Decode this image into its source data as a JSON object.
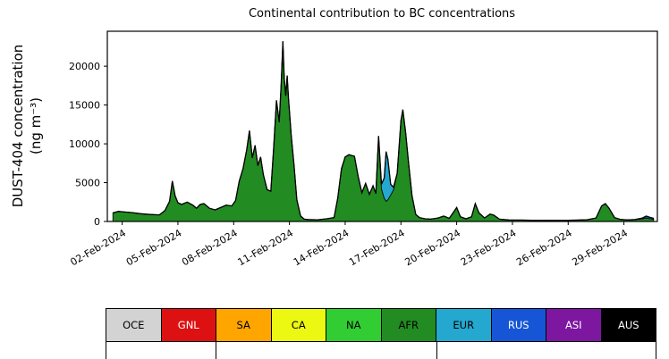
{
  "chart_data": {
    "type": "area",
    "title": "Continental contribution to BC concentrations",
    "ylabel_line1": "DUST-404 concentration",
    "ylabel_line2": "(ng m⁻³)",
    "xlim": [
      0.2,
      29.8
    ],
    "ylim": [
      0,
      24500
    ],
    "grid": false,
    "y_ticks": [
      0,
      5000,
      10000,
      15000,
      20000
    ],
    "x_ticks": [
      {
        "day": 1,
        "label": "02-Feb-2024"
      },
      {
        "day": 4,
        "label": "05-Feb-2024"
      },
      {
        "day": 7,
        "label": "08-Feb-2024"
      },
      {
        "day": 10,
        "label": "11-Feb-2024"
      },
      {
        "day": 13,
        "label": "14-Feb-2024"
      },
      {
        "day": 16,
        "label": "17-Feb-2024"
      },
      {
        "day": 19,
        "label": "20-Feb-2024"
      },
      {
        "day": 22,
        "label": "23-Feb-2024"
      },
      {
        "day": 25,
        "label": "26-Feb-2024"
      },
      {
        "day": 28,
        "label": "29-Feb-2024"
      }
    ],
    "x": [
      0.5,
      0.8,
      1.0,
      1.5,
      2.0,
      2.5,
      3.0,
      3.3,
      3.55,
      3.7,
      3.85,
      4.0,
      4.2,
      4.5,
      4.8,
      5.0,
      5.2,
      5.4,
      5.7,
      6.0,
      6.3,
      6.6,
      6.9,
      7.1,
      7.3,
      7.5,
      7.7,
      7.85,
      8.0,
      8.15,
      8.3,
      8.45,
      8.6,
      8.8,
      9.0,
      9.15,
      9.3,
      9.45,
      9.55,
      9.65,
      9.72,
      9.8,
      9.88,
      9.95,
      10.1,
      10.25,
      10.4,
      10.6,
      10.8,
      11.0,
      11.5,
      12.0,
      12.4,
      12.6,
      12.8,
      13.0,
      13.2,
      13.5,
      13.7,
      13.9,
      14.1,
      14.3,
      14.5,
      14.65,
      14.8,
      14.95,
      15.1,
      15.2,
      15.3,
      15.45,
      15.6,
      15.8,
      16.0,
      16.1,
      16.25,
      16.4,
      16.6,
      16.8,
      17.0,
      17.3,
      17.6,
      18.0,
      18.3,
      18.6,
      19.0,
      19.2,
      19.5,
      19.8,
      20.0,
      20.2,
      20.5,
      20.8,
      21.0,
      21.3,
      21.8,
      22.5,
      23.0,
      24.0,
      25.0,
      26.0,
      26.5,
      26.8,
      27.0,
      27.2,
      27.5,
      27.8,
      28.2,
      28.6,
      29.0,
      29.2,
      29.4,
      29.6
    ],
    "series": [
      {
        "name": "AFR",
        "color": "#228B22",
        "values": [
          1100,
          1300,
          1250,
          1150,
          1000,
          900,
          850,
          1400,
          2600,
          5200,
          3300,
          2400,
          2200,
          2500,
          2100,
          1700,
          2200,
          2300,
          1700,
          1500,
          1800,
          2100,
          2000,
          2700,
          5200,
          6800,
          9200,
          11700,
          8200,
          9800,
          7200,
          8300,
          6000,
          4100,
          3900,
          9500,
          15600,
          12800,
          17500,
          23200,
          18500,
          16200,
          18800,
          15800,
          11000,
          7200,
          2800,
          700,
          300,
          250,
          220,
          350,
          500,
          3000,
          6800,
          8300,
          8600,
          8400,
          5800,
          3700,
          4900,
          3500,
          4600,
          3600,
          11000,
          4200,
          3000,
          2600,
          2800,
          3400,
          4100,
          6200,
          13000,
          14400,
          11500,
          7800,
          3300,
          900,
          500,
          350,
          300,
          450,
          700,
          400,
          1800,
          600,
          350,
          600,
          2300,
          1100,
          450,
          950,
          800,
          300,
          200,
          180,
          150,
          140,
          150,
          220,
          450,
          2000,
          2300,
          1700,
          500,
          280,
          200,
          250,
          350,
          450,
          350,
          300
        ]
      },
      {
        "name": "EUR",
        "color": "#25a8cf",
        "values": [
          0,
          0,
          0,
          0,
          0,
          0,
          0,
          0,
          0,
          0,
          0,
          0,
          0,
          0,
          0,
          0,
          0,
          0,
          0,
          0,
          0,
          0,
          0,
          0,
          0,
          0,
          0,
          0,
          0,
          0,
          0,
          0,
          0,
          0,
          0,
          0,
          0,
          0,
          0,
          0,
          0,
          0,
          0,
          0,
          0,
          0,
          0,
          0,
          0,
          0,
          0,
          0,
          0,
          0,
          0,
          0,
          0,
          0,
          0,
          0,
          0,
          0,
          0,
          0,
          0,
          600,
          2600,
          6400,
          5200,
          1400,
          300,
          0,
          0,
          0,
          0,
          0,
          0,
          0,
          0,
          0,
          0,
          0,
          0,
          0,
          0,
          0,
          0,
          0,
          0,
          0,
          0,
          0,
          0,
          0,
          0,
          0,
          0,
          0,
          0,
          0,
          0,
          0,
          0,
          0,
          0,
          0,
          0,
          0,
          0,
          0,
          0,
          0
        ]
      },
      {
        "name": "RUS",
        "color": "#1656d6",
        "values": [
          0,
          0,
          0,
          0,
          0,
          0,
          0,
          0,
          0,
          0,
          0,
          0,
          0,
          0,
          0,
          0,
          0,
          0,
          0,
          0,
          0,
          0,
          0,
          0,
          0,
          0,
          0,
          0,
          0,
          0,
          0,
          0,
          0,
          0,
          0,
          0,
          0,
          0,
          0,
          0,
          0,
          0,
          0,
          0,
          0,
          0,
          0,
          0,
          0,
          0,
          0,
          0,
          0,
          0,
          0,
          0,
          0,
          0,
          0,
          0,
          0,
          0,
          0,
          0,
          0,
          0,
          0,
          0,
          0,
          0,
          0,
          0,
          0,
          0,
          0,
          0,
          0,
          0,
          0,
          0,
          0,
          0,
          0,
          0,
          0,
          0,
          0,
          0,
          0,
          0,
          0,
          0,
          0,
          0,
          0,
          0,
          0,
          0,
          0,
          0,
          0,
          0,
          0,
          0,
          0,
          0,
          0,
          0,
          100,
          250,
          180,
          100
        ]
      }
    ],
    "outline_color": "#000000"
  },
  "legend": {
    "items": [
      {
        "label": "OCE",
        "color": "#d3d3d3",
        "text": "#000000"
      },
      {
        "label": "GNL",
        "color": "#dd1111",
        "text": "#ffffff"
      },
      {
        "label": "SA",
        "color": "#ffa500",
        "text": "#000000"
      },
      {
        "label": "CA",
        "color": "#edf812",
        "text": "#000000"
      },
      {
        "label": "NA",
        "color": "#32CD32",
        "text": "#000000"
      },
      {
        "label": "AFR",
        "color": "#228B22",
        "text": "#000000"
      },
      {
        "label": "EUR",
        "color": "#25a8cf",
        "text": "#000000"
      },
      {
        "label": "RUS",
        "color": "#1656d6",
        "text": "#ffffff"
      },
      {
        "label": "ASI",
        "color": "#7d17a0",
        "text": "#ffffff"
      },
      {
        "label": "AUS",
        "color": "#000000",
        "text": "#ffffff"
      }
    ],
    "subtick_percents": [
      0,
      20,
      60,
      100
    ]
  }
}
